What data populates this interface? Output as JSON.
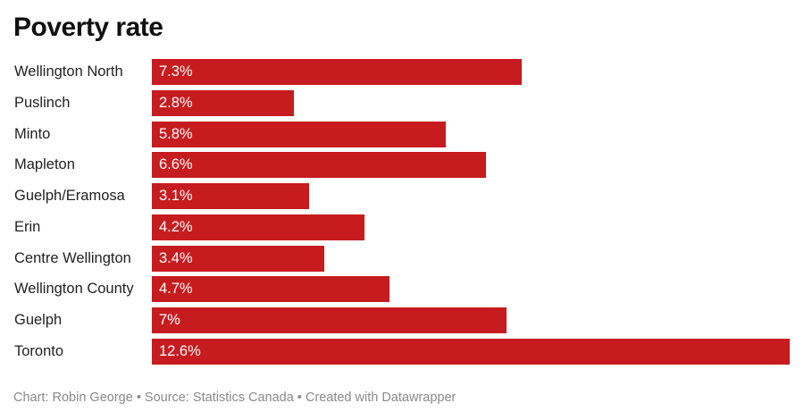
{
  "chart_data": {
    "type": "bar",
    "orientation": "horizontal",
    "title": "Poverty rate",
    "categories": [
      "Wellington North",
      "Puslinch",
      "Minto",
      "Mapleton",
      "Guelph/Eramosa",
      "Erin",
      "Centre Wellington",
      "Wellington County",
      "Guelph",
      "Toronto"
    ],
    "values": [
      7.3,
      2.8,
      5.8,
      6.6,
      3.1,
      4.2,
      3.4,
      4.7,
      7,
      12.6
    ],
    "value_labels": [
      "7.3%",
      "2.8%",
      "5.8%",
      "6.6%",
      "3.1%",
      "4.2%",
      "3.4%",
      "4.7%",
      "7%",
      "12.6%"
    ],
    "xlim": [
      0,
      12.6
    ],
    "grid": false,
    "bar_color": "#c71c1f",
    "footer": "Chart: Robin George • Source: Statistics Canada • Created with Datawrapper"
  }
}
